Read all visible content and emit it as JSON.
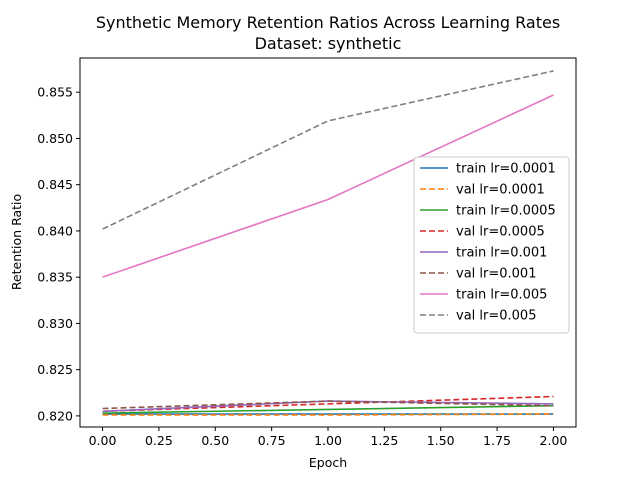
{
  "chart_data": {
    "type": "line",
    "title": "Synthetic Memory Retention Ratios Across Learning Rates",
    "subtitle": "Dataset: synthetic",
    "xlabel": "Epoch",
    "ylabel": "Retention Ratio",
    "x": [
      0,
      1,
      2
    ],
    "xlim": [
      -0.1,
      2.1
    ],
    "ylim": [
      0.8188,
      0.8587
    ],
    "xticks": [
      "0.00",
      "0.25",
      "0.50",
      "0.75",
      "1.00",
      "1.25",
      "1.50",
      "1.75",
      "2.00"
    ],
    "yticks": [
      "0.820",
      "0.825",
      "0.830",
      "0.835",
      "0.840",
      "0.845",
      "0.850",
      "0.855"
    ],
    "grid": false,
    "legend_position": "center-right",
    "series": [
      {
        "name": "train lr=0.0001",
        "values": [
          0.8202,
          0.8202,
          0.8202
        ],
        "color": "#1f77b4",
        "dash": false
      },
      {
        "name": "val lr=0.0001",
        "values": [
          0.8201,
          0.8201,
          0.8202
        ],
        "color": "#ff7f0e",
        "dash": true
      },
      {
        "name": "train lr=0.0005",
        "values": [
          0.8203,
          0.8207,
          0.8211
        ],
        "color": "#2ca02c",
        "dash": false
      },
      {
        "name": "val lr=0.0005",
        "values": [
          0.8205,
          0.8213,
          0.8221
        ],
        "color": "#d62728",
        "dash": true
      },
      {
        "name": "train lr=0.001",
        "values": [
          0.8205,
          0.8216,
          0.8213
        ],
        "color": "#9467bd",
        "dash": false
      },
      {
        "name": "val lr=0.001",
        "values": [
          0.8208,
          0.8216,
          0.8211
        ],
        "color": "#8c564b",
        "dash": true
      },
      {
        "name": "train lr=0.005",
        "values": [
          0.835,
          0.8434,
          0.8547
        ],
        "color": "#e377c2",
        "dash": false
      },
      {
        "name": "val lr=0.005",
        "values": [
          0.8402,
          0.8519,
          0.8573
        ],
        "color": "#7f7f7f",
        "dash": true
      }
    ]
  }
}
